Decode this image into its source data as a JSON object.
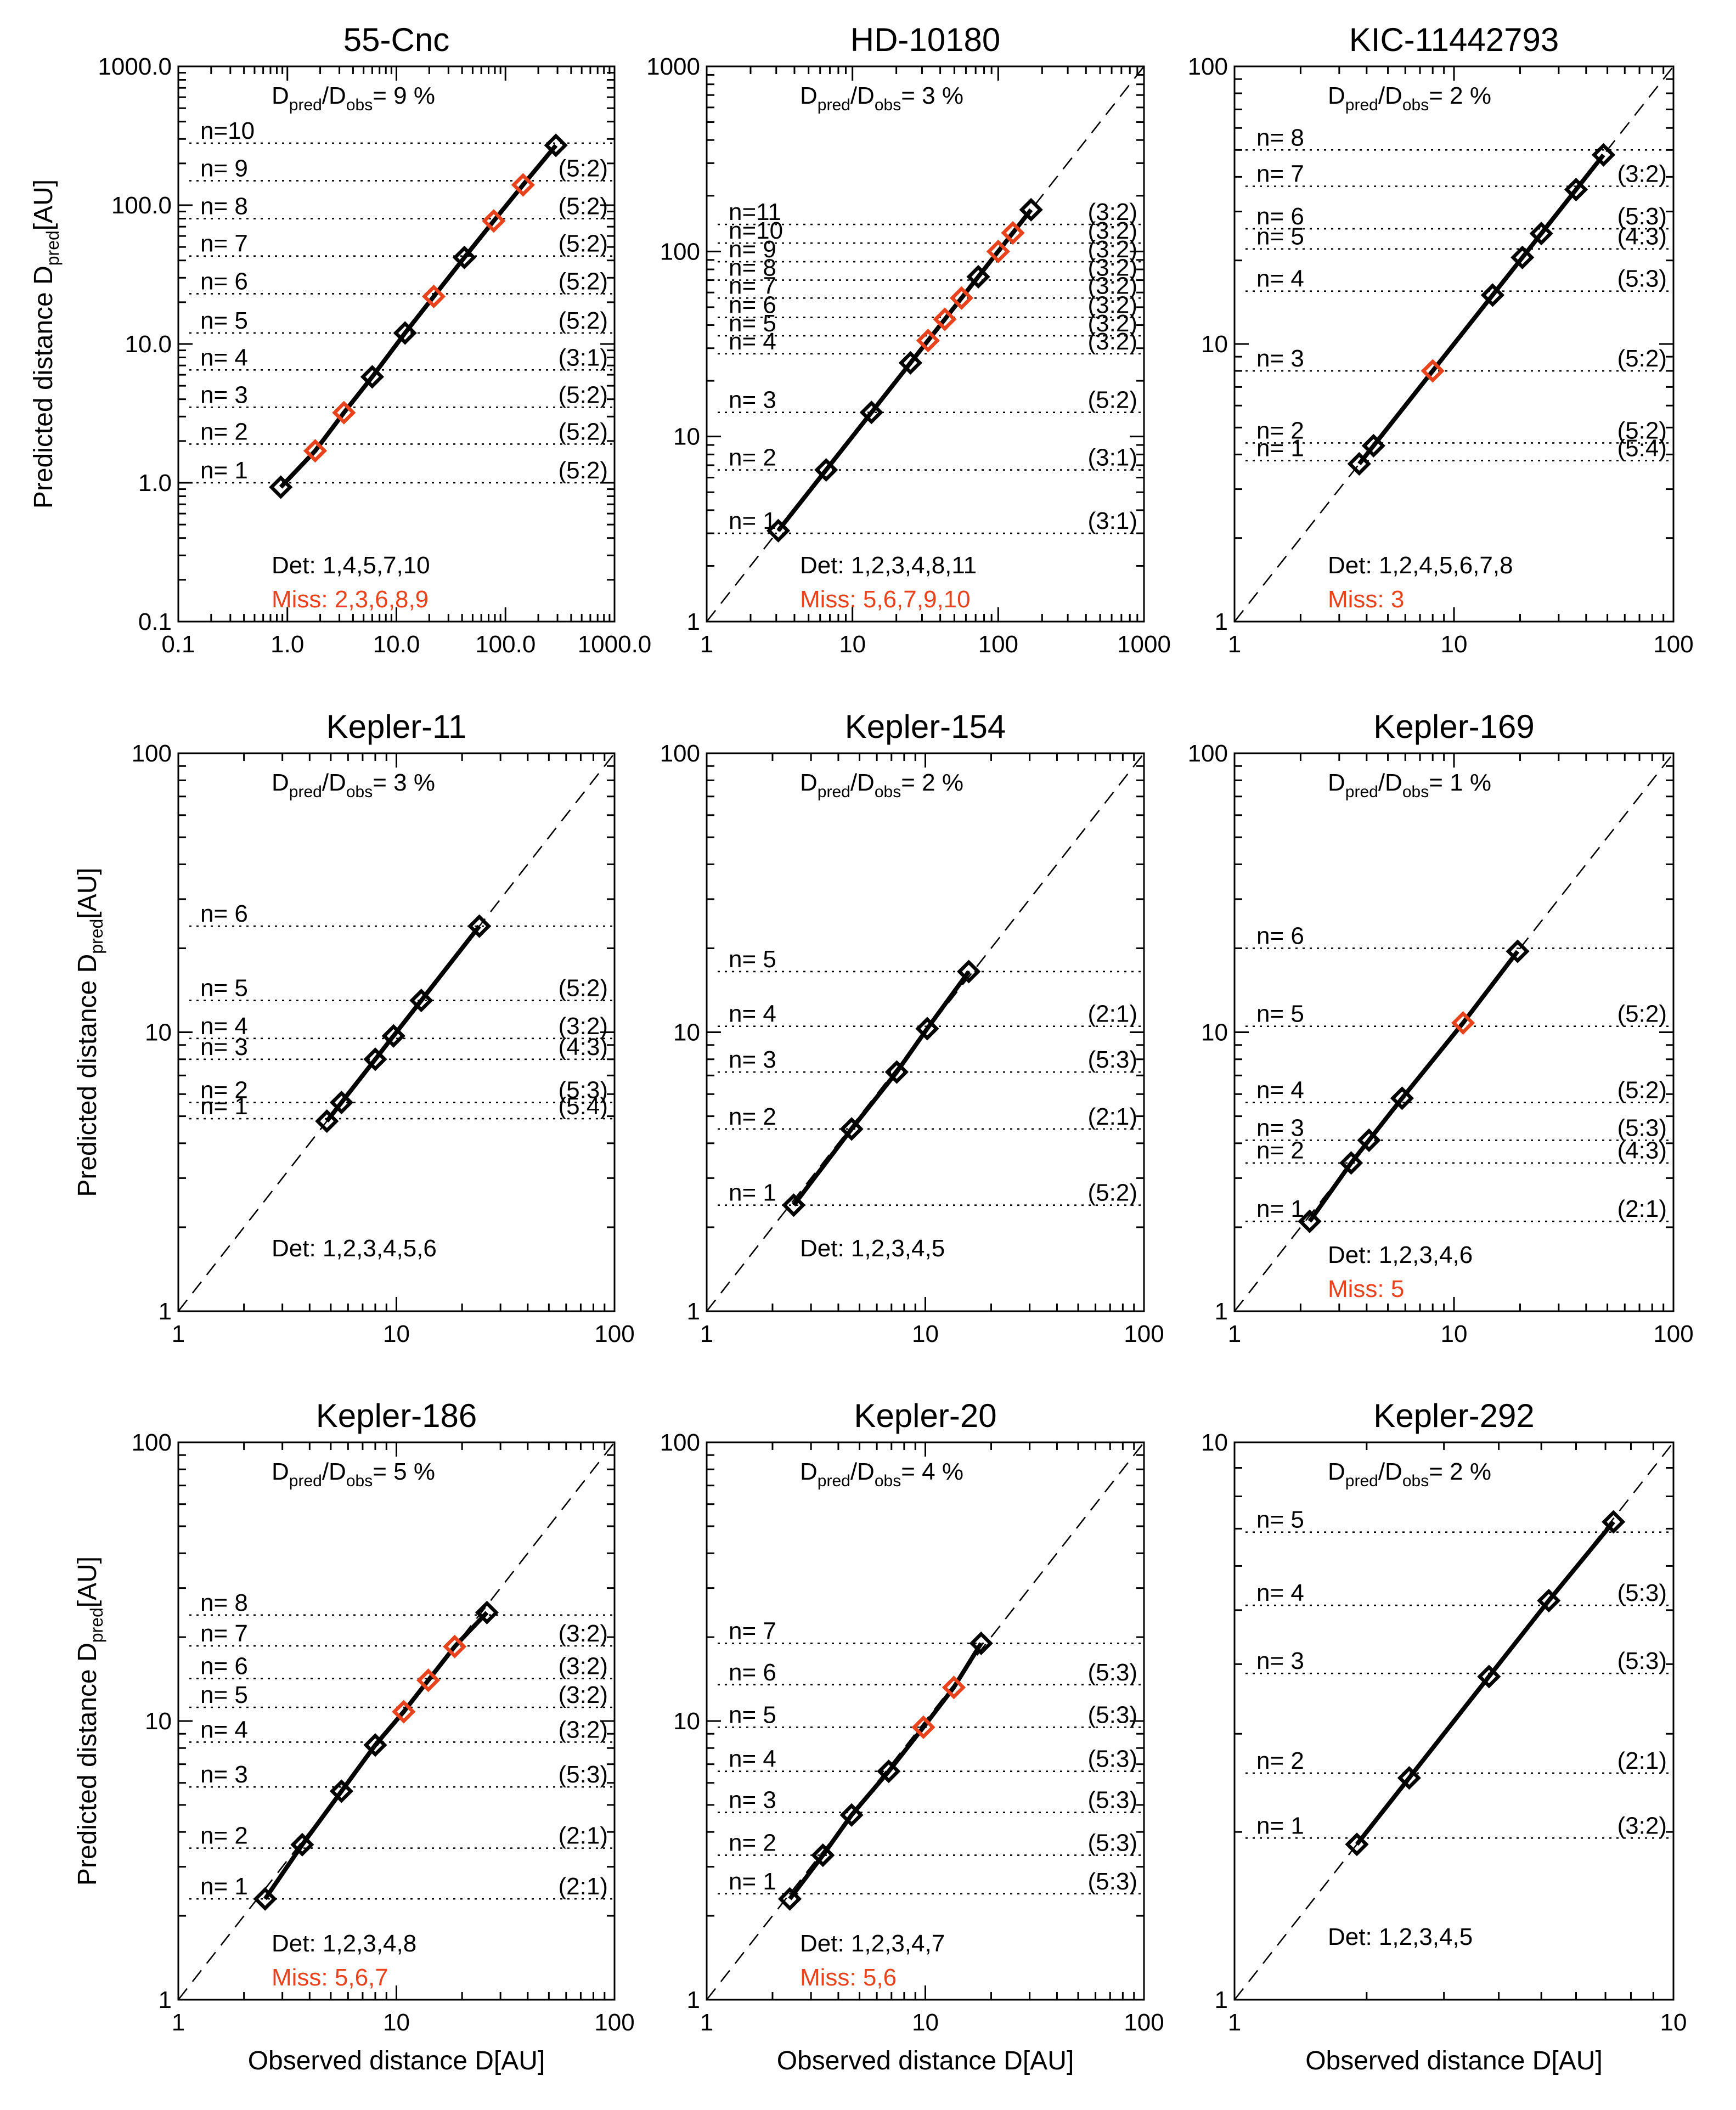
{
  "figure": {
    "colors": {
      "detected": "#000000",
      "missing": "#e8431c"
    },
    "ylabel": "Predicted distance D",
    "ylabel_sub": "pred",
    "ylabel_unit": "[AU]",
    "xlabel": "Observed distance D[AU]",
    "ratio_prefix_main": "D",
    "ratio_sub1": "pred",
    "ratio_sub2": "obs",
    "det_prefix": "Det:",
    "miss_prefix": "Miss:"
  },
  "chart_data": [
    {
      "type": "scatter",
      "title": "55-Cnc",
      "xlim": [
        0.1,
        1000
      ],
      "ylim": [
        0.1,
        1000
      ],
      "xticks": [
        "0.1",
        "1.0",
        "10.0",
        "100.0",
        "1000.0"
      ],
      "yticks": [
        "0.1",
        "1.0",
        "10.0",
        "100.0",
        "1000.0"
      ],
      "ratio_value": "= 9 %",
      "diagonal": false,
      "levels": [
        {
          "label": "n= 1",
          "y": 1.0
        },
        {
          "label": "n= 2",
          "y": 1.9
        },
        {
          "label": "n= 3",
          "y": 3.5
        },
        {
          "label": "n= 4",
          "y": 6.5
        },
        {
          "label": "n= 5",
          "y": 12.0
        },
        {
          "label": "n= 6",
          "y": 23
        },
        {
          "label": "n= 7",
          "y": 43
        },
        {
          "label": "n= 8",
          "y": 80
        },
        {
          "label": "n= 9",
          "y": 150
        },
        {
          "label": "n=10",
          "y": 280
        }
      ],
      "resonances": [
        "(5:2)",
        "(5:2)",
        "(5:2)",
        "(3:1)",
        "(5:2)",
        "(5:2)",
        "(5:2)",
        "(5:2)",
        "(5:2)"
      ],
      "points": [
        {
          "x": 0.87,
          "y": 0.93,
          "missing": false
        },
        {
          "x": 1.8,
          "y": 1.7,
          "missing": true
        },
        {
          "x": 3.3,
          "y": 3.2,
          "missing": true
        },
        {
          "x": 6.0,
          "y": 5.8,
          "missing": false
        },
        {
          "x": 12.0,
          "y": 12.0,
          "missing": false
        },
        {
          "x": 22,
          "y": 22,
          "missing": true
        },
        {
          "x": 42,
          "y": 42,
          "missing": false
        },
        {
          "x": 78,
          "y": 77,
          "missing": true
        },
        {
          "x": 145,
          "y": 140,
          "missing": true
        },
        {
          "x": 290,
          "y": 270,
          "missing": false
        }
      ],
      "det": "1,4,5,7,10",
      "miss": "2,3,6,8,9"
    },
    {
      "type": "scatter",
      "title": "HD-10180",
      "xlim": [
        1,
        1000
      ],
      "ylim": [
        1,
        1000
      ],
      "xticks": [
        "1",
        "10",
        "100",
        "1000"
      ],
      "yticks": [
        "1",
        "10",
        "100",
        "1000"
      ],
      "ratio_value": "= 3 %",
      "diagonal": true,
      "levels": [
        {
          "label": "n= 1",
          "y": 3.0
        },
        {
          "label": "n= 2",
          "y": 6.6
        },
        {
          "label": "n= 3",
          "y": 13.5
        },
        {
          "label": "n= 4",
          "y": 28
        },
        {
          "label": "n= 5",
          "y": 35
        },
        {
          "label": "n= 6",
          "y": 44
        },
        {
          "label": "n= 7",
          "y": 56
        },
        {
          "label": "n= 8",
          "y": 70
        },
        {
          "label": "n= 9",
          "y": 88
        },
        {
          "label": "n=10",
          "y": 111
        },
        {
          "label": "n=11",
          "y": 140
        }
      ],
      "resonances": [
        "(3:1)",
        "(3:1)",
        "(5:2)",
        "(3:2)",
        "(3:2)",
        "(3:2)",
        "(3:2)",
        "(3:2)",
        "(3:2)",
        "(3:2)",
        "(3:2)"
      ],
      "points": [
        {
          "x": 3.1,
          "y": 3.1,
          "missing": false
        },
        {
          "x": 6.6,
          "y": 6.6,
          "missing": false
        },
        {
          "x": 13.5,
          "y": 13.5,
          "missing": false
        },
        {
          "x": 25,
          "y": 25,
          "missing": false
        },
        {
          "x": 33,
          "y": 33,
          "missing": true
        },
        {
          "x": 43,
          "y": 43,
          "missing": true
        },
        {
          "x": 56,
          "y": 56,
          "missing": true
        },
        {
          "x": 73,
          "y": 73,
          "missing": false
        },
        {
          "x": 100,
          "y": 100,
          "missing": true
        },
        {
          "x": 126,
          "y": 126,
          "missing": true
        },
        {
          "x": 168,
          "y": 168,
          "missing": false
        }
      ],
      "det": "1,2,3,4,8,11",
      "miss": "5,6,7,9,10"
    },
    {
      "type": "scatter",
      "title": "KIC-11442793",
      "xlim": [
        1,
        100
      ],
      "ylim": [
        1,
        100
      ],
      "xticks": [
        "1",
        "10",
        "100"
      ],
      "yticks": [
        "1",
        "10",
        "100"
      ],
      "ratio_value": "= 2 %",
      "diagonal": true,
      "levels": [
        {
          "label": "n= 1",
          "y": 3.8
        },
        {
          "label": "n= 2",
          "y": 4.4
        },
        {
          "label": "n= 3",
          "y": 8.0
        },
        {
          "label": "n= 4",
          "y": 15.5
        },
        {
          "label": "n= 5",
          "y": 22
        },
        {
          "label": "n= 6",
          "y": 26
        },
        {
          "label": "n= 7",
          "y": 37
        },
        {
          "label": "n= 8",
          "y": 50
        }
      ],
      "resonances": [
        "(5:4)",
        "(5:2)",
        "(5:2)",
        "(5:3)",
        "(4:3)",
        "(5:3)",
        "(3:2)"
      ],
      "points": [
        {
          "x": 3.7,
          "y": 3.7,
          "missing": false
        },
        {
          "x": 4.3,
          "y": 4.3,
          "missing": false
        },
        {
          "x": 8.0,
          "y": 8.0,
          "missing": true
        },
        {
          "x": 15.0,
          "y": 15.0,
          "missing": false
        },
        {
          "x": 20.5,
          "y": 20.5,
          "missing": false
        },
        {
          "x": 25,
          "y": 25,
          "missing": false
        },
        {
          "x": 36,
          "y": 36,
          "missing": false
        },
        {
          "x": 48,
          "y": 48,
          "missing": false
        }
      ],
      "det": "1,2,4,5,6,7,8",
      "miss": "3"
    },
    {
      "type": "scatter",
      "title": "Kepler-11",
      "xlim": [
        1,
        100
      ],
      "ylim": [
        1,
        100
      ],
      "xticks": [
        "1",
        "10",
        "100"
      ],
      "yticks": [
        "1",
        "10",
        "100"
      ],
      "ratio_value": "= 3 %",
      "diagonal": true,
      "levels": [
        {
          "label": "n= 1",
          "y": 4.9
        },
        {
          "label": "n= 2",
          "y": 5.6
        },
        {
          "label": "n= 3",
          "y": 8.0
        },
        {
          "label": "n= 4",
          "y": 9.5
        },
        {
          "label": "n= 5",
          "y": 13.0
        },
        {
          "label": "n= 6",
          "y": 24
        }
      ],
      "resonances": [
        "(5:4)",
        "(5:3)",
        "(4:3)",
        "(3:2)",
        "(5:2)"
      ],
      "points": [
        {
          "x": 4.8,
          "y": 4.8,
          "missing": false
        },
        {
          "x": 5.6,
          "y": 5.6,
          "missing": false
        },
        {
          "x": 8.0,
          "y": 8.0,
          "missing": false
        },
        {
          "x": 9.7,
          "y": 9.7,
          "missing": false
        },
        {
          "x": 13.0,
          "y": 13.0,
          "missing": false
        },
        {
          "x": 24,
          "y": 24,
          "missing": false
        }
      ],
      "det": "1,2,3,4,5,6",
      "miss": ""
    },
    {
      "type": "scatter",
      "title": "Kepler-154",
      "xlim": [
        1,
        100
      ],
      "ylim": [
        1,
        100
      ],
      "xticks": [
        "1",
        "10",
        "100"
      ],
      "yticks": [
        "1",
        "10",
        "100"
      ],
      "ratio_value": "= 2 %",
      "diagonal": true,
      "levels": [
        {
          "label": "n= 1",
          "y": 2.4
        },
        {
          "label": "n= 2",
          "y": 4.5
        },
        {
          "label": "n= 3",
          "y": 7.2
        },
        {
          "label": "n= 4",
          "y": 10.5
        },
        {
          "label": "n= 5",
          "y": 16.5
        }
      ],
      "resonances": [
        "(5:2)",
        "(2:1)",
        "(5:3)",
        "(2:1)"
      ],
      "points": [
        {
          "x": 2.5,
          "y": 2.4,
          "missing": false
        },
        {
          "x": 4.6,
          "y": 4.5,
          "missing": false
        },
        {
          "x": 7.4,
          "y": 7.2,
          "missing": false
        },
        {
          "x": 10.2,
          "y": 10.3,
          "missing": false
        },
        {
          "x": 15.8,
          "y": 16.5,
          "missing": false
        }
      ],
      "det": "1,2,3,4,5",
      "miss": ""
    },
    {
      "type": "scatter",
      "title": "Kepler-169",
      "xlim": [
        1,
        100
      ],
      "ylim": [
        1,
        100
      ],
      "xticks": [
        "1",
        "10",
        "100"
      ],
      "yticks": [
        "1",
        "10",
        "100"
      ],
      "ratio_value": "= 1 %",
      "diagonal": true,
      "levels": [
        {
          "label": "n= 1",
          "y": 2.1
        },
        {
          "label": "n= 2",
          "y": 3.4
        },
        {
          "label": "n= 3",
          "y": 4.1
        },
        {
          "label": "n= 4",
          "y": 5.6
        },
        {
          "label": "n= 5",
          "y": 10.5
        },
        {
          "label": "n= 6",
          "y": 20
        }
      ],
      "resonances": [
        "(2:1)",
        "(4:3)",
        "(5:3)",
        "(5:2)",
        "(5:2)"
      ],
      "points": [
        {
          "x": 2.2,
          "y": 2.1,
          "missing": false
        },
        {
          "x": 3.4,
          "y": 3.4,
          "missing": false
        },
        {
          "x": 4.1,
          "y": 4.1,
          "missing": false
        },
        {
          "x": 5.8,
          "y": 5.8,
          "missing": false
        },
        {
          "x": 11.0,
          "y": 10.8,
          "missing": true
        },
        {
          "x": 19.5,
          "y": 19.5,
          "missing": false
        }
      ],
      "det": "1,2,3,4,6",
      "miss": "5"
    },
    {
      "type": "scatter",
      "title": "Kepler-186",
      "xlim": [
        1,
        100
      ],
      "ylim": [
        1,
        100
      ],
      "xticks": [
        "1",
        "10",
        "100"
      ],
      "yticks": [
        "1",
        "10",
        "100"
      ],
      "ratio_value": "= 5 %",
      "diagonal": true,
      "levels": [
        {
          "label": "n= 1",
          "y": 2.3
        },
        {
          "label": "n= 2",
          "y": 3.5
        },
        {
          "label": "n= 3",
          "y": 5.8
        },
        {
          "label": "n= 4",
          "y": 8.4
        },
        {
          "label": "n= 5",
          "y": 11.2
        },
        {
          "label": "n= 6",
          "y": 14.2
        },
        {
          "label": "n= 7",
          "y": 18.6
        },
        {
          "label": "n= 8",
          "y": 24
        }
      ],
      "resonances": [
        "(2:1)",
        "(2:1)",
        "(5:3)",
        "(3:2)",
        "(3:2)",
        "(3:2)",
        "(3:2)"
      ],
      "points": [
        {
          "x": 2.5,
          "y": 2.3,
          "missing": false
        },
        {
          "x": 3.7,
          "y": 3.6,
          "missing": false
        },
        {
          "x": 5.6,
          "y": 5.6,
          "missing": false
        },
        {
          "x": 8.0,
          "y": 8.2,
          "missing": false
        },
        {
          "x": 10.8,
          "y": 10.8,
          "missing": true
        },
        {
          "x": 14.0,
          "y": 14.0,
          "missing": true
        },
        {
          "x": 18.5,
          "y": 18.5,
          "missing": true
        },
        {
          "x": 26,
          "y": 24.5,
          "missing": false
        }
      ],
      "det": "1,2,3,4,8",
      "miss": "5,6,7"
    },
    {
      "type": "scatter",
      "title": "Kepler-20",
      "xlim": [
        1,
        100
      ],
      "ylim": [
        1,
        100
      ],
      "xticks": [
        "1",
        "10",
        "100"
      ],
      "yticks": [
        "1",
        "10",
        "100"
      ],
      "ratio_value": "= 4 %",
      "diagonal": true,
      "levels": [
        {
          "label": "n= 1",
          "y": 2.4
        },
        {
          "label": "n= 2",
          "y": 3.3
        },
        {
          "label": "n= 3",
          "y": 4.7
        },
        {
          "label": "n= 4",
          "y": 6.6
        },
        {
          "label": "n= 5",
          "y": 9.5
        },
        {
          "label": "n= 6",
          "y": 13.5
        },
        {
          "label": "n= 7",
          "y": 19
        }
      ],
      "resonances": [
        "(5:3)",
        "(5:3)",
        "(5:3)",
        "(5:3)",
        "(5:3)",
        "(5:3)"
      ],
      "points": [
        {
          "x": 2.4,
          "y": 2.3,
          "missing": false
        },
        {
          "x": 3.4,
          "y": 3.3,
          "missing": false
        },
        {
          "x": 4.6,
          "y": 4.6,
          "missing": false
        },
        {
          "x": 6.8,
          "y": 6.6,
          "missing": false
        },
        {
          "x": 9.8,
          "y": 9.5,
          "missing": true
        },
        {
          "x": 13.5,
          "y": 13.2,
          "missing": true
        },
        {
          "x": 18.0,
          "y": 19.0,
          "missing": false
        }
      ],
      "det": "1,2,3,4,7",
      "miss": "5,6"
    },
    {
      "type": "scatter",
      "title": "Kepler-292",
      "xlim": [
        1,
        10
      ],
      "ylim": [
        1,
        10
      ],
      "xticks": [
        "1",
        "10"
      ],
      "yticks": [
        "1",
        "10"
      ],
      "ratio_value": "= 2 %",
      "diagonal": true,
      "levels": [
        {
          "label": "n= 1",
          "y": 1.95
        },
        {
          "label": "n= 2",
          "y": 2.55
        },
        {
          "label": "n= 3",
          "y": 3.85
        },
        {
          "label": "n= 4",
          "y": 5.1
        },
        {
          "label": "n= 5",
          "y": 6.9
        }
      ],
      "resonances": [
        "(3:2)",
        "(2:1)",
        "(5:3)",
        "(5:3)"
      ],
      "points": [
        {
          "x": 1.9,
          "y": 1.9,
          "missing": false
        },
        {
          "x": 2.5,
          "y": 2.5,
          "missing": false
        },
        {
          "x": 3.8,
          "y": 3.8,
          "missing": false
        },
        {
          "x": 5.2,
          "y": 5.2,
          "missing": false
        },
        {
          "x": 7.3,
          "y": 7.2,
          "missing": false
        }
      ],
      "det": "1,2,3,4,5",
      "miss": ""
    }
  ]
}
